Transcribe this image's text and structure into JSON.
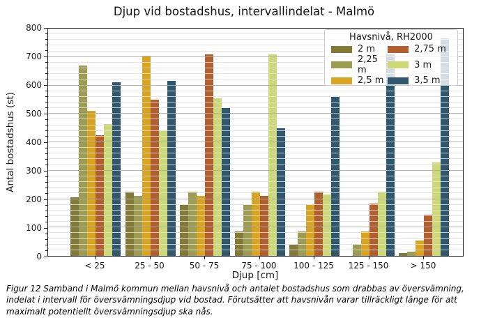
{
  "chart_data": {
    "type": "bar",
    "title": "Djup vid bostadshus, intervallindelat - Malmö",
    "xlabel": "Djup [cm]",
    "ylabel": "Antal bostadshus (st)",
    "ylim": [
      0,
      800
    ],
    "ytick_step": 100,
    "yminor_step": 20,
    "grid": "major and minor horizontal gridlines drawn over bars",
    "legend": {
      "title": "Havsnivå, RH2000",
      "position": "upper right",
      "columns": 2
    },
    "categories": [
      "< 25",
      "25 - 50",
      "50 - 75",
      "75 - 100",
      "100 - 125",
      "125 - 150",
      "> 150"
    ],
    "series": [
      {
        "name": "2 m",
        "color": "#847a38",
        "values": [
          205,
          225,
          180,
          85,
          40,
          0,
          10
        ]
      },
      {
        "name": "2,25 m",
        "color": "#9c9c52",
        "values": [
          670,
          210,
          225,
          180,
          85,
          40,
          15
        ]
      },
      {
        "name": "2,5 m",
        "color": "#d9a521",
        "values": [
          510,
          705,
          210,
          225,
          180,
          85,
          55
        ]
      },
      {
        "name": "2,75 m",
        "color": "#b15f2f",
        "values": [
          425,
          550,
          710,
          210,
          225,
          185,
          145
        ]
      },
      {
        "name": "3 m",
        "color": "#cdd877",
        "values": [
          465,
          440,
          555,
          710,
          215,
          225,
          330
        ]
      },
      {
        "name": "3,5 m",
        "color": "#2f586e",
        "values": [
          610,
          615,
          520,
          450,
          560,
          710,
          765
        ]
      }
    ]
  },
  "caption": {
    "lines": [
      "Figur 12 Samband i Malmö kommun mellan havsnivå och antalet bostadshus som drabbas av översvämning,",
      "indelat i intervall för översvämningsdjup vid bostad. Förutsätter att havsnivån varar tillräckligt länge för att",
      "maximalt potentiellt översvämningsdjup ska nås."
    ]
  }
}
